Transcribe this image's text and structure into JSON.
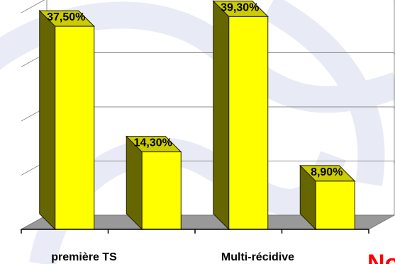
{
  "chart_data": {
    "type": "bar",
    "style": "3d",
    "categories": [
      "première TS",
      "",
      "Multi-récidive",
      ""
    ],
    "values": [
      37.5,
      14.3,
      39.3,
      8.9
    ],
    "data_labels": [
      "37,50%",
      "14,30%",
      "39,30%",
      "8,90%"
    ],
    "ylim": [
      0,
      40
    ],
    "grid": true,
    "legend": "none",
    "title": "",
    "xlabel": "",
    "ylabel": ""
  },
  "corner_text": "No",
  "colors": {
    "bar_front": "#ffff00",
    "bar_side": "#666600",
    "bar_top": "#cccc00",
    "floor": "#999999",
    "gridline": "#8c8c8c",
    "corner_text": "#ff0000"
  }
}
